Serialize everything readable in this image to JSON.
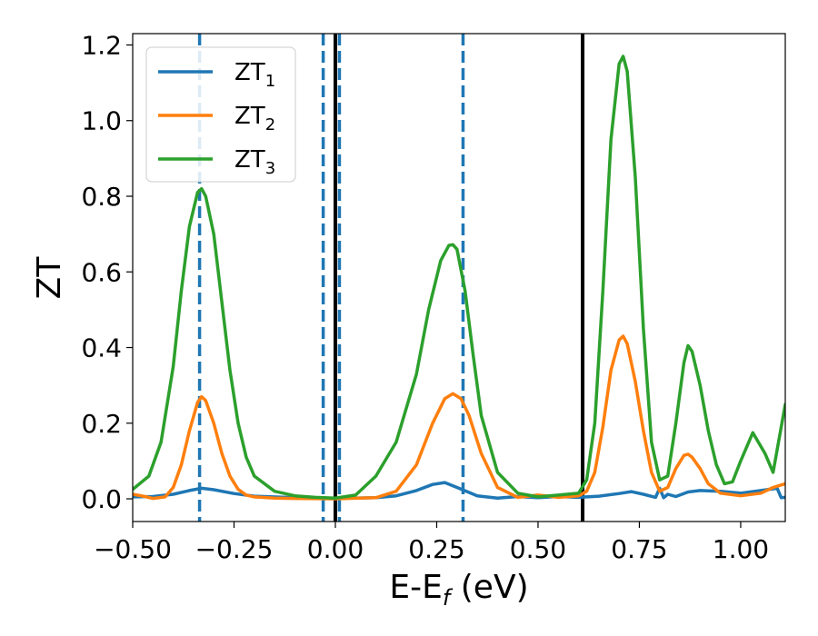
{
  "chart_data": {
    "type": "line",
    "xlabel": "E-E",
    "xlabel_sub": "f",
    "xlabel_unit": "(eV)",
    "ylabel": "ZT",
    "xlim": [
      -0.5,
      1.11
    ],
    "ylim": [
      -0.06,
      1.23
    ],
    "xticks": [
      -0.5,
      -0.25,
      0.0,
      0.25,
      0.5,
      0.75,
      1.0
    ],
    "xtick_labels": [
      "−0.50",
      "−0.25",
      "0.00",
      "0.25",
      "0.50",
      "0.75",
      "1.00"
    ],
    "yticks": [
      0.0,
      0.2,
      0.4,
      0.6,
      0.8,
      1.0,
      1.2
    ],
    "ytick_labels": [
      "0.0",
      "0.2",
      "0.4",
      "0.6",
      "0.8",
      "1.0",
      "1.2"
    ],
    "legend_position": "top-left",
    "grid": false,
    "series": [
      {
        "name": "ZT",
        "name_sub": "1",
        "color": "#1f77b4",
        "x": [
          -0.5,
          -0.45,
          -0.4,
          -0.36,
          -0.33,
          -0.3,
          -0.25,
          -0.2,
          -0.1,
          0.0,
          0.1,
          0.15,
          0.2,
          0.24,
          0.27,
          0.3,
          0.35,
          0.4,
          0.45,
          0.5,
          0.55,
          0.6,
          0.65,
          0.7,
          0.73,
          0.76,
          0.79,
          0.8,
          0.81,
          0.82,
          0.84,
          0.87,
          0.9,
          0.95,
          1.0,
          1.05,
          1.09,
          1.1,
          1.11
        ],
        "y": [
          0.005,
          0.006,
          0.012,
          0.022,
          0.028,
          0.024,
          0.014,
          0.007,
          0.003,
          0.001,
          0.003,
          0.008,
          0.022,
          0.038,
          0.043,
          0.03,
          0.008,
          0.002,
          0.006,
          0.003,
          0.006,
          0.004,
          0.007,
          0.014,
          0.019,
          0.012,
          0.004,
          0.028,
          0.003,
          0.012,
          0.006,
          0.018,
          0.022,
          0.02,
          0.015,
          0.022,
          0.028,
          0.003,
          0.004
        ]
      },
      {
        "name": "ZT",
        "name_sub": "2",
        "color": "#ff7f0e",
        "x": [
          -0.5,
          -0.47,
          -0.45,
          -0.42,
          -0.4,
          -0.38,
          -0.36,
          -0.34,
          -0.33,
          -0.32,
          -0.3,
          -0.28,
          -0.26,
          -0.24,
          -0.22,
          -0.2,
          -0.15,
          -0.1,
          0.0,
          0.1,
          0.15,
          0.2,
          0.24,
          0.27,
          0.29,
          0.31,
          0.33,
          0.36,
          0.4,
          0.45,
          0.5,
          0.55,
          0.6,
          0.62,
          0.64,
          0.66,
          0.68,
          0.7,
          0.71,
          0.72,
          0.74,
          0.76,
          0.78,
          0.8,
          0.82,
          0.84,
          0.86,
          0.87,
          0.88,
          0.9,
          0.92,
          0.95,
          1.0,
          1.05,
          1.08,
          1.11
        ],
        "y": [
          0.012,
          0.006,
          0.001,
          0.005,
          0.03,
          0.09,
          0.18,
          0.255,
          0.27,
          0.26,
          0.2,
          0.12,
          0.06,
          0.025,
          0.01,
          0.005,
          0.002,
          0.001,
          0.0,
          0.003,
          0.02,
          0.09,
          0.2,
          0.265,
          0.278,
          0.265,
          0.22,
          0.12,
          0.03,
          0.004,
          0.01,
          0.004,
          0.008,
          0.02,
          0.07,
          0.19,
          0.34,
          0.42,
          0.43,
          0.41,
          0.31,
          0.18,
          0.07,
          0.02,
          0.03,
          0.08,
          0.115,
          0.118,
          0.11,
          0.08,
          0.04,
          0.015,
          0.008,
          0.015,
          0.03,
          0.04
        ]
      },
      {
        "name": "ZT",
        "name_sub": "3",
        "color": "#2ca02c",
        "x": [
          -0.5,
          -0.46,
          -0.43,
          -0.4,
          -0.38,
          -0.36,
          -0.34,
          -0.33,
          -0.32,
          -0.3,
          -0.28,
          -0.26,
          -0.24,
          -0.22,
          -0.2,
          -0.15,
          -0.1,
          -0.05,
          0.0,
          0.05,
          0.1,
          0.15,
          0.2,
          0.23,
          0.26,
          0.28,
          0.29,
          0.3,
          0.32,
          0.34,
          0.36,
          0.4,
          0.45,
          0.5,
          0.55,
          0.6,
          0.62,
          0.64,
          0.66,
          0.68,
          0.7,
          0.71,
          0.72,
          0.74,
          0.76,
          0.78,
          0.8,
          0.82,
          0.84,
          0.86,
          0.87,
          0.88,
          0.9,
          0.92,
          0.94,
          0.96,
          0.98,
          1.0,
          1.03,
          1.06,
          1.08,
          1.11
        ],
        "y": [
          0.025,
          0.06,
          0.15,
          0.35,
          0.55,
          0.72,
          0.81,
          0.82,
          0.8,
          0.7,
          0.52,
          0.34,
          0.2,
          0.11,
          0.06,
          0.02,
          0.008,
          0.004,
          0.002,
          0.01,
          0.06,
          0.15,
          0.33,
          0.5,
          0.63,
          0.67,
          0.672,
          0.66,
          0.55,
          0.38,
          0.22,
          0.07,
          0.015,
          0.005,
          0.01,
          0.015,
          0.05,
          0.2,
          0.55,
          0.95,
          1.15,
          1.17,
          1.13,
          0.85,
          0.45,
          0.15,
          0.05,
          0.06,
          0.2,
          0.36,
          0.405,
          0.39,
          0.3,
          0.18,
          0.09,
          0.04,
          0.045,
          0.1,
          0.175,
          0.12,
          0.07,
          0.25
        ]
      }
    ],
    "vlines": [
      {
        "x": -0.335,
        "style": "dashed",
        "color": "#1f77b4"
      },
      {
        "x": -0.03,
        "style": "dashed",
        "color": "#1f77b4"
      },
      {
        "x": 0.01,
        "style": "dashed",
        "color": "#1f77b4"
      },
      {
        "x": 0.315,
        "style": "dashed",
        "color": "#1f77b4"
      },
      {
        "x": 0.0,
        "style": "solid",
        "color": "#000000"
      },
      {
        "x": 0.61,
        "style": "solid",
        "color": "#000000"
      }
    ]
  }
}
